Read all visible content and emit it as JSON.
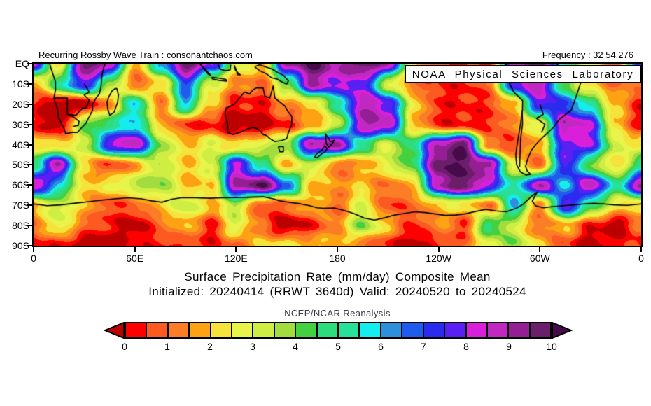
{
  "header": {
    "left": "Recurring Rossby Wave Train : consonantchaos.com",
    "frequency": "Frequency : 32 54 276"
  },
  "overlay": {
    "lab": "NOAA Physical Sciences Laboratory"
  },
  "chart_data": {
    "type": "heatmap",
    "title": "Surface Precipitation Rate (mm/day) Composite Mean",
    "subtitle": "Initialized: 20240414 (RRWT 3640d) Valid: 20240520 to 20240524",
    "source_label": "NCEP/NCAR Reanalysis",
    "x_ticks": [
      "0",
      "60E",
      "120E",
      "180",
      "120W",
      "60W",
      "0"
    ],
    "y_ticks": [
      "EQ",
      "10S",
      "20S",
      "30S",
      "40S",
      "50S",
      "60S",
      "70S",
      "80S",
      "90S"
    ],
    "lon_range": [
      0,
      360
    ],
    "lat_range": [
      0,
      -90
    ],
    "units": "mm/day",
    "colorbar": {
      "tick_labels": [
        "0",
        "1",
        "2",
        "3",
        "4",
        "5",
        "6",
        "7",
        "8",
        "9",
        "10"
      ],
      "levels": [
        0,
        0.5,
        1,
        1.5,
        2,
        2.5,
        3,
        3.5,
        4,
        4.5,
        5,
        5.5,
        6,
        6.5,
        7,
        7.5,
        8,
        8.5,
        9,
        9.5,
        10
      ],
      "colors": [
        "#fe0000",
        "#fc5a21",
        "#fb7d26",
        "#fda313",
        "#f5e23a",
        "#e9f44a",
        "#cfee43",
        "#a2dc3e",
        "#43d13f",
        "#2edc7c",
        "#29e09a",
        "#14eded",
        "#2e8fdb",
        "#1f5cee",
        "#2b2bf0",
        "#5a1ff2",
        "#da1fda",
        "#c127c1",
        "#941f94",
        "#6b1f6b"
      ],
      "below_color": "#bc0000",
      "above_color": "#470b4b",
      "border_color": "#000000"
    },
    "grid": {
      "lons": [
        0,
        15,
        30,
        45,
        60,
        75,
        90,
        105,
        120,
        135,
        150,
        165,
        180,
        195,
        210,
        225,
        240,
        255,
        270,
        285,
        300,
        315,
        330,
        345
      ],
      "lats": [
        0,
        -10,
        -20,
        -30,
        -40,
        -50,
        -60,
        -70,
        -80,
        -90
      ],
      "values": [
        [
          8,
          2,
          10,
          9,
          1.5,
          6,
          10,
          8,
          3,
          2,
          9,
          10,
          9,
          10,
          9,
          2,
          1,
          0.3,
          0.3,
          9,
          10,
          5,
          2.5,
          1
        ],
        [
          1.5,
          5,
          8,
          4,
          1,
          2,
          7,
          3,
          1.5,
          1,
          4,
          9,
          8,
          8,
          3,
          1,
          0.5,
          0.3,
          1,
          8,
          9,
          4,
          2,
          1
        ],
        [
          0.3,
          -0.5,
          -0.5,
          1.5,
          6,
          1,
          6,
          2,
          0.3,
          0.3,
          1.5,
          2,
          5,
          9,
          8,
          2.5,
          0.3,
          0.3,
          0.5,
          2,
          8,
          7,
          5,
          2
        ],
        [
          0.3,
          -0.5,
          4,
          5,
          6,
          2,
          0.5,
          0.3,
          -0.5,
          -0.5,
          0.5,
          1.5,
          3,
          9,
          9,
          2,
          0.3,
          0.3,
          0.3,
          1.5,
          3,
          9,
          8,
          2
        ],
        [
          2.5,
          2,
          3,
          8,
          9,
          4,
          2,
          3,
          2,
          3,
          4,
          9,
          9,
          5,
          3,
          5,
          9,
          10,
          1,
          0.5,
          2,
          8,
          8,
          3
        ],
        [
          5,
          9,
          2,
          0.5,
          1.5,
          3.5,
          2,
          3,
          8,
          5,
          2,
          3.5,
          1,
          1.5,
          3,
          4.5,
          10,
          10,
          9,
          2.5,
          1,
          8,
          4,
          2
        ],
        [
          9,
          6,
          2,
          2.5,
          3.5,
          4,
          2,
          2,
          9,
          10,
          7,
          2,
          1.5,
          2,
          1,
          2,
          9,
          10,
          8,
          5,
          9,
          6,
          9,
          5
        ],
        [
          2,
          3.5,
          2,
          0.5,
          1,
          2,
          3.5,
          2,
          3.5,
          0.5,
          1,
          2,
          1,
          3,
          0.5,
          1,
          2,
          2.5,
          1,
          6,
          1,
          8,
          5,
          2.5
        ],
        [
          1,
          3,
          1,
          0.3,
          -0.5,
          1,
          2,
          0.3,
          3,
          1,
          -0.5,
          0.3,
          1.5,
          4,
          2,
          0.3,
          1.5,
          0.5,
          5,
          3,
          1,
          2,
          0.3,
          -0.5
        ],
        [
          0.3,
          0.3,
          -0.5,
          -0.5,
          0.3,
          0.3,
          0.5,
          0.3,
          1,
          2,
          2.5,
          2,
          2,
          1,
          0.3,
          -0.5,
          0.3,
          1,
          3,
          4,
          2,
          0.5,
          -0.5,
          0.3
        ]
      ]
    },
    "coastlines": [
      [
        [
          9.5,
          0
        ],
        [
          11,
          -4
        ],
        [
          13,
          -9
        ],
        [
          13,
          -13
        ],
        [
          12,
          -17
        ],
        [
          14,
          -22
        ],
        [
          15,
          -27
        ],
        [
          18,
          -32
        ],
        [
          19,
          -34.5
        ],
        [
          23,
          -34
        ],
        [
          26,
          -34
        ],
        [
          28,
          -32
        ],
        [
          31,
          -29.5
        ],
        [
          32.5,
          -27
        ],
        [
          35,
          -23
        ],
        [
          35,
          -20
        ],
        [
          37,
          -17
        ],
        [
          39,
          -15
        ],
        [
          40,
          -11
        ],
        [
          40.5,
          -6
        ],
        [
          41.5,
          -2
        ],
        [
          42.5,
          0
        ]
      ],
      [
        [
          12,
          -17
        ],
        [
          20,
          -17
        ],
        [
          20,
          -22
        ],
        [
          20,
          -25
        ],
        [
          25,
          -25.5
        ],
        [
          29,
          -22
        ],
        [
          31,
          -22
        ]
      ],
      [
        [
          20,
          -25
        ],
        [
          24,
          -26.5
        ],
        [
          27,
          -28.5
        ],
        [
          26.5,
          -30.5
        ],
        [
          23.5,
          -31
        ]
      ],
      [
        [
          30,
          -10
        ],
        [
          33,
          -14
        ],
        [
          30,
          -15.5
        ],
        [
          33,
          -18
        ],
        [
          31,
          -22
        ]
      ],
      [
        [
          49.3,
          -12.2
        ],
        [
          50.3,
          -15.5
        ],
        [
          49.8,
          -19
        ],
        [
          47.8,
          -23.8
        ],
        [
          45.2,
          -25.5
        ],
        [
          44,
          -22.5
        ],
        [
          43.5,
          -19
        ],
        [
          44.5,
          -16.5
        ],
        [
          46.5,
          -13.5
        ],
        [
          48,
          -12.5
        ],
        [
          49.3,
          -12.2
        ]
      ],
      [
        [
          114,
          -22
        ],
        [
          113.5,
          -25
        ],
        [
          115,
          -30
        ],
        [
          115,
          -34
        ],
        [
          118,
          -35
        ],
        [
          122,
          -34
        ],
        [
          126,
          -32.5
        ],
        [
          130,
          -31.5
        ],
        [
          132,
          -32
        ],
        [
          134,
          -33
        ],
        [
          136,
          -35
        ],
        [
          138,
          -35.5
        ],
        [
          140,
          -37
        ],
        [
          143,
          -38.5
        ],
        [
          147,
          -38
        ],
        [
          150,
          -37
        ],
        [
          151,
          -34
        ],
        [
          153,
          -30
        ],
        [
          153,
          -26
        ],
        [
          151,
          -24
        ],
        [
          149,
          -21
        ],
        [
          146,
          -19
        ],
        [
          143,
          -17
        ],
        [
          142,
          -11
        ],
        [
          140,
          -17
        ],
        [
          137,
          -16
        ],
        [
          136,
          -12
        ],
        [
          132,
          -12
        ],
        [
          130,
          -13
        ],
        [
          128,
          -15
        ],
        [
          125,
          -14
        ],
        [
          122,
          -17
        ],
        [
          119,
          -20
        ],
        [
          114,
          -22
        ]
      ],
      [
        [
          145,
          -41
        ],
        [
          148,
          -41
        ],
        [
          148,
          -43.5
        ],
        [
          146,
          -43.5
        ],
        [
          145,
          -41
        ]
      ],
      [
        [
          131,
          -1.5
        ],
        [
          134,
          -3.5
        ],
        [
          138,
          -5
        ],
        [
          141,
          -7
        ],
        [
          144,
          -7.5
        ],
        [
          147,
          -9
        ],
        [
          150,
          -10
        ],
        [
          151,
          -8.5
        ],
        [
          148,
          -5.8
        ],
        [
          145,
          -4.5
        ],
        [
          141,
          -2.5
        ],
        [
          137,
          -1.5
        ],
        [
          134,
          -0.5
        ],
        [
          131,
          -1.5
        ]
      ],
      [
        [
          105.5,
          -6.8
        ],
        [
          110,
          -7.2
        ],
        [
          114,
          -7.8
        ],
        [
          114.5,
          -8.6
        ],
        [
          110,
          -8.3
        ],
        [
          106,
          -7.5
        ],
        [
          105.5,
          -6.8
        ]
      ],
      [
        [
          99,
          -0.5
        ],
        [
          102,
          -3
        ],
        [
          105,
          -5.8
        ],
        [
          103.5,
          -5.2
        ],
        [
          100.5,
          -2.2
        ],
        [
          98.5,
          0
        ]
      ],
      [
        [
          109.5,
          -0.5
        ],
        [
          110.5,
          -2.8
        ],
        [
          114,
          -3.5
        ],
        [
          116.5,
          -3
        ],
        [
          116.8,
          -0.5
        ]
      ],
      [
        [
          119,
          -0.8
        ],
        [
          119.5,
          -3
        ],
        [
          121,
          -4.5
        ],
        [
          122.5,
          -5.5
        ],
        [
          120.8,
          -5.4
        ],
        [
          120,
          -2.8
        ],
        [
          118.8,
          -0.8
        ]
      ],
      [
        [
          172.8,
          -34.5
        ],
        [
          174.5,
          -36.5
        ],
        [
          175.8,
          -38.5
        ],
        [
          178.3,
          -37.8
        ],
        [
          177,
          -39.5
        ],
        [
          174.8,
          -41.3
        ],
        [
          173.5,
          -39.3
        ],
        [
          172.8,
          -34.5
        ]
      ],
      [
        [
          172.5,
          -40.8
        ],
        [
          174,
          -41.8
        ],
        [
          172.8,
          -43.5
        ],
        [
          170.8,
          -44.5
        ],
        [
          168,
          -46.5
        ],
        [
          166.5,
          -46
        ],
        [
          168.5,
          -44
        ],
        [
          170.5,
          -43
        ],
        [
          172.5,
          -40.8
        ]
      ],
      [
        [
          280,
          0
        ],
        [
          279.2,
          -5
        ],
        [
          281.5,
          -9
        ],
        [
          284.5,
          -14
        ],
        [
          289.8,
          -18.3
        ],
        [
          289.7,
          -23
        ],
        [
          288.5,
          -30
        ],
        [
          287.5,
          -35
        ],
        [
          286.5,
          -40
        ],
        [
          285.7,
          -45
        ],
        [
          286.2,
          -50
        ],
        [
          288.5,
          -53.5
        ],
        [
          291.7,
          -55
        ],
        [
          294.5,
          -54.7
        ],
        [
          292.5,
          -53
        ],
        [
          291.5,
          -50.8
        ],
        [
          292.8,
          -47
        ],
        [
          294.8,
          -43
        ],
        [
          297.5,
          -40
        ],
        [
          301.5,
          -36.5
        ],
        [
          303.5,
          -35
        ],
        [
          305.5,
          -33.5
        ],
        [
          308,
          -31.5
        ],
        [
          311.5,
          -27.5
        ],
        [
          318.5,
          -23
        ],
        [
          320.5,
          -18.5
        ],
        [
          322.8,
          -13
        ],
        [
          324.8,
          -8
        ],
        [
          322,
          -5
        ],
        [
          318.5,
          -3
        ],
        [
          315,
          -2
        ],
        [
          311,
          -1
        ],
        [
          309.8,
          0
        ]
      ],
      [
        [
          289.5,
          -23
        ],
        [
          289.7,
          -30
        ],
        [
          288.6,
          -37
        ],
        [
          288.3,
          -44
        ],
        [
          288,
          -51
        ]
      ],
      [
        [
          300,
          -20
        ],
        [
          302,
          -25
        ],
        [
          298,
          -27
        ],
        [
          303,
          -30
        ],
        [
          301,
          -34
        ]
      ],
      [
        [
          0,
          -69.3
        ],
        [
          8,
          -70.2
        ],
        [
          16,
          -69.8
        ],
        [
          24,
          -69
        ],
        [
          32,
          -68.3
        ],
        [
          40,
          -67.5
        ],
        [
          48,
          -66.8
        ],
        [
          56,
          -66.3
        ],
        [
          64,
          -66.8
        ],
        [
          70,
          -67.8
        ],
        [
          76,
          -68.5
        ],
        [
          82,
          -67
        ],
        [
          88,
          -66.2
        ],
        [
          96,
          -66.3
        ],
        [
          104,
          -66.5
        ],
        [
          112,
          -66.3
        ],
        [
          120,
          -66.2
        ],
        [
          128,
          -66
        ],
        [
          136,
          -65.8
        ],
        [
          142,
          -66.8
        ],
        [
          146,
          -67.8
        ],
        [
          152,
          -68.6
        ],
        [
          158,
          -69.2
        ],
        [
          164,
          -70.3
        ],
        [
          168,
          -71.2
        ],
        [
          172,
          -71.5
        ],
        [
          178,
          -71.3
        ],
        [
          184,
          -72.5
        ],
        [
          190,
          -74.2
        ],
        [
          196,
          -76.3
        ],
        [
          202,
          -77.3
        ],
        [
          208,
          -76.2
        ],
        [
          214,
          -74.8
        ],
        [
          220,
          -74
        ],
        [
          226,
          -73.2
        ],
        [
          232,
          -73.6
        ],
        [
          238,
          -74.3
        ],
        [
          244,
          -75
        ],
        [
          250,
          -74.8
        ],
        [
          256,
          -74.2
        ],
        [
          262,
          -73
        ],
        [
          268,
          -72
        ],
        [
          274,
          -72.8
        ],
        [
          280,
          -73.2
        ],
        [
          286,
          -71.5
        ],
        [
          290,
          -69.5
        ],
        [
          293,
          -67.2
        ],
        [
          296,
          -64.8
        ],
        [
          298.5,
          -63.5
        ],
        [
          297,
          -65.5
        ],
        [
          295.5,
          -68
        ],
        [
          297.5,
          -70.3
        ],
        [
          302,
          -71.2
        ],
        [
          308,
          -70.6
        ],
        [
          314,
          -70.2
        ],
        [
          320,
          -69.8
        ],
        [
          326,
          -69.3
        ],
        [
          332,
          -69
        ],
        [
          338,
          -69.3
        ],
        [
          344,
          -69.8
        ],
        [
          352,
          -70
        ],
        [
          360,
          -69.3
        ]
      ]
    ]
  },
  "colors": {
    "background": "#ffffff",
    "frame": "#000000",
    "coastline": "#000000",
    "source_text": "#3a3a4e"
  }
}
